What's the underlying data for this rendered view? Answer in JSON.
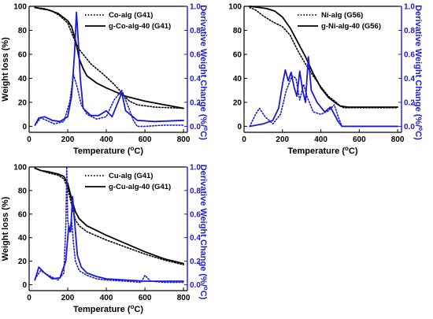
{
  "colors": {
    "weight": "#000000",
    "derivative": "#1a1ad6"
  },
  "chart_data": [
    {
      "type": "line",
      "xlabel_prefix": "Temperature (",
      "xlabel_unit": "oC",
      "xlabel_suffix": ")",
      "ylabel_left": "Weight loss (%)",
      "ylabel_right_prefix": "Derivative Weight Change (%/",
      "ylabel_right_unit": "oC",
      "ylabel_right_suffix": ")",
      "xlim": [
        0,
        820
      ],
      "ylim_left": [
        -5,
        100
      ],
      "ylim_right": [
        -0.05,
        1.0
      ],
      "xticks": [
        0,
        200,
        400,
        600,
        800
      ],
      "yticks_left": [
        0,
        20,
        40,
        60,
        80,
        100
      ],
      "yticks_right": [
        "0.0",
        "0.2",
        "0.4",
        "0.6",
        "0.8",
        "1.0"
      ],
      "legend": [
        "Co-alg (G41)",
        "g-Co-alg-40 (G41)"
      ],
      "series": [
        {
          "name": "Co-alg (G41)",
          "axis": "left",
          "style": "dotted",
          "x": [
            30,
            80,
            120,
            160,
            200,
            220,
            240,
            260,
            280,
            320,
            380,
            440,
            480,
            500,
            520,
            560,
            650,
            800
          ],
          "y": [
            99,
            98,
            96,
            92,
            86,
            78,
            70,
            64,
            60,
            52,
            44,
            35,
            28,
            24,
            21,
            18,
            16,
            15
          ]
        },
        {
          "name": "g-Co-alg-40 (G41)",
          "axis": "left",
          "style": "solid",
          "x": [
            30,
            60,
            100,
            150,
            200,
            220,
            240,
            260,
            280,
            300,
            350,
            400,
            500,
            600,
            700,
            800
          ],
          "y": [
            99,
            98,
            97,
            94,
            88,
            83,
            72,
            56,
            48,
            42,
            36,
            32,
            25,
            21,
            18,
            15
          ]
        },
        {
          "name": "Co-alg (G41) derivative",
          "axis": "right",
          "style": "dotted",
          "x": [
            30,
            60,
            90,
            130,
            180,
            210,
            230,
            250,
            270,
            300,
            350,
            400,
            440,
            480,
            510,
            540,
            560,
            600,
            700,
            800
          ],
          "y": [
            0.01,
            0.07,
            0.05,
            0.02,
            0.04,
            0.2,
            0.43,
            0.32,
            0.18,
            0.1,
            0.06,
            0.08,
            0.22,
            0.3,
            0.18,
            0.05,
            0.0,
            0.0,
            0.01,
            0.01
          ]
        },
        {
          "name": "g-Co-alg-40 (G41) derivative",
          "axis": "right",
          "style": "solid",
          "x": [
            30,
            50,
            80,
            120,
            160,
            200,
            220,
            235,
            245,
            255,
            265,
            280,
            320,
            360,
            400,
            430,
            460,
            480,
            500,
            560,
            650,
            800
          ],
          "y": [
            0.01,
            0.07,
            0.08,
            0.05,
            0.04,
            0.08,
            0.25,
            0.6,
            0.95,
            0.7,
            0.4,
            0.15,
            0.09,
            0.09,
            0.13,
            0.08,
            0.2,
            0.28,
            0.13,
            0.05,
            0.04,
            0.05
          ]
        }
      ]
    },
    {
      "type": "line",
      "xlabel_prefix": "Temperature (",
      "xlabel_unit": "oC",
      "xlabel_suffix": ")",
      "ylabel_left": "",
      "ylabel_right_prefix": "Derivative Weight Change (%/",
      "ylabel_right_unit": "oC",
      "ylabel_right_suffix": ")",
      "xlim": [
        0,
        820
      ],
      "ylim_left": [
        -5,
        100
      ],
      "ylim_right": [
        -0.05,
        1.0
      ],
      "xticks": [
        0,
        200,
        400,
        600,
        800
      ],
      "yticks_left": [
        0,
        20,
        40,
        60,
        80,
        100
      ],
      "yticks_right": [
        "0.0",
        "0.2",
        "0.4",
        "0.6",
        "0.8",
        "1.0"
      ],
      "legend": [
        "Ni-alg (G56)",
        "g-Ni-alg-40 (G56)"
      ],
      "series": [
        {
          "name": "Ni-alg (G56)",
          "axis": "left",
          "style": "dotted",
          "x": [
            30,
            60,
            100,
            150,
            200,
            240,
            280,
            320,
            360,
            400,
            440,
            480,
            500,
            520,
            800
          ],
          "y": [
            99,
            97,
            92,
            87,
            83,
            76,
            63,
            52,
            42,
            33,
            25,
            20,
            17,
            15.5,
            15.5
          ]
        },
        {
          "name": "g-Ni-alg-40 (G56)",
          "axis": "left",
          "style": "solid",
          "x": [
            30,
            80,
            120,
            160,
            200,
            240,
            280,
            320,
            360,
            400,
            440,
            480,
            500,
            540,
            800
          ],
          "y": [
            100,
            99,
            98,
            96,
            91,
            82,
            70,
            58,
            44,
            32,
            24,
            19,
            17,
            16,
            16
          ]
        },
        {
          "name": "Ni-alg (G56) derivative",
          "axis": "right",
          "style": "dotted",
          "x": [
            30,
            60,
            80,
            110,
            150,
            190,
            220,
            250,
            270,
            290,
            310,
            330,
            360,
            400,
            440,
            470,
            490,
            510,
            540,
            800
          ],
          "y": [
            0.0,
            0.1,
            0.15,
            0.08,
            0.02,
            0.1,
            0.3,
            0.42,
            0.4,
            0.22,
            0.35,
            0.24,
            0.12,
            0.1,
            0.13,
            0.18,
            0.08,
            0.0,
            0.0,
            0.0
          ]
        },
        {
          "name": "g-Ni-alg-40 (G56) derivative",
          "axis": "right",
          "style": "solid",
          "x": [
            30,
            100,
            150,
            180,
            200,
            215,
            230,
            245,
            260,
            275,
            290,
            305,
            320,
            335,
            350,
            380,
            420,
            450,
            470,
            490,
            510,
            540,
            800
          ],
          "y": [
            0.0,
            0.02,
            0.05,
            0.15,
            0.35,
            0.47,
            0.38,
            0.45,
            0.33,
            0.25,
            0.46,
            0.3,
            0.2,
            0.58,
            0.3,
            0.2,
            0.12,
            0.16,
            0.1,
            0.04,
            0.0,
            0.0,
            0.0
          ]
        }
      ]
    },
    {
      "type": "line",
      "xlabel_prefix": "Temperature (",
      "xlabel_unit": "oC",
      "xlabel_suffix": ")",
      "ylabel_left": "Weight loss (%)",
      "ylabel_right_prefix": "Derivative Weight Change (%/",
      "ylabel_right_unit": "oC",
      "ylabel_right_suffix": ")",
      "xlim": [
        0,
        820
      ],
      "ylim_left": [
        -5,
        100
      ],
      "ylim_right": [
        -0.05,
        1.0
      ],
      "xticks": [
        0,
        200,
        400,
        600,
        800
      ],
      "yticks_left": [
        0,
        20,
        40,
        60,
        80,
        100
      ],
      "yticks_right": [
        "0.0",
        "0.2",
        "0.4",
        "0.6",
        "0.8",
        "1.0"
      ],
      "legend": [
        "Cu-alg (G41)",
        "g-Cu-alg-40 (G41)"
      ],
      "series": [
        {
          "name": "Cu-alg (G41)",
          "axis": "left",
          "style": "dotted",
          "x": [
            30,
            60,
            100,
            150,
            180,
            200,
            220,
            240,
            260,
            300,
            400,
            500,
            600,
            700,
            800
          ],
          "y": [
            99,
            97,
            95,
            93,
            90,
            82,
            68,
            55,
            50,
            45,
            38,
            32,
            26,
            21,
            17
          ]
        },
        {
          "name": "g-Cu-alg-40 (G41)",
          "axis": "left",
          "style": "solid",
          "x": [
            30,
            60,
            100,
            150,
            180,
            200,
            220,
            240,
            260,
            300,
            350,
            400,
            500,
            600,
            700,
            800
          ],
          "y": [
            99,
            97,
            96,
            94,
            92,
            86,
            73,
            62,
            56,
            50,
            46,
            42,
            35,
            28,
            22,
            18
          ]
        },
        {
          "name": "Cu-alg (G41) derivative",
          "axis": "right",
          "style": "dotted",
          "x": [
            30,
            60,
            100,
            150,
            180,
            190,
            195,
            200,
            210,
            220,
            230,
            240,
            260,
            300,
            350,
            400,
            500,
            580,
            600,
            630,
            700,
            800
          ],
          "y": [
            0.05,
            0.12,
            0.08,
            0.04,
            0.1,
            0.5,
            1.0,
            0.55,
            0.45,
            0.55,
            0.35,
            0.2,
            0.12,
            0.08,
            0.05,
            0.04,
            0.03,
            0.02,
            0.08,
            0.03,
            0.02,
            0.02
          ]
        },
        {
          "name": "g-Cu-alg-40 (G41) derivative",
          "axis": "right",
          "style": "solid",
          "x": [
            30,
            50,
            80,
            120,
            160,
            190,
            205,
            215,
            225,
            235,
            250,
            270,
            300,
            350,
            400,
            500,
            600,
            700,
            800
          ],
          "y": [
            0.04,
            0.15,
            0.1,
            0.05,
            0.06,
            0.2,
            0.5,
            0.45,
            0.75,
            0.55,
            0.25,
            0.15,
            0.1,
            0.07,
            0.05,
            0.04,
            0.03,
            0.03,
            0.03
          ]
        }
      ]
    }
  ]
}
